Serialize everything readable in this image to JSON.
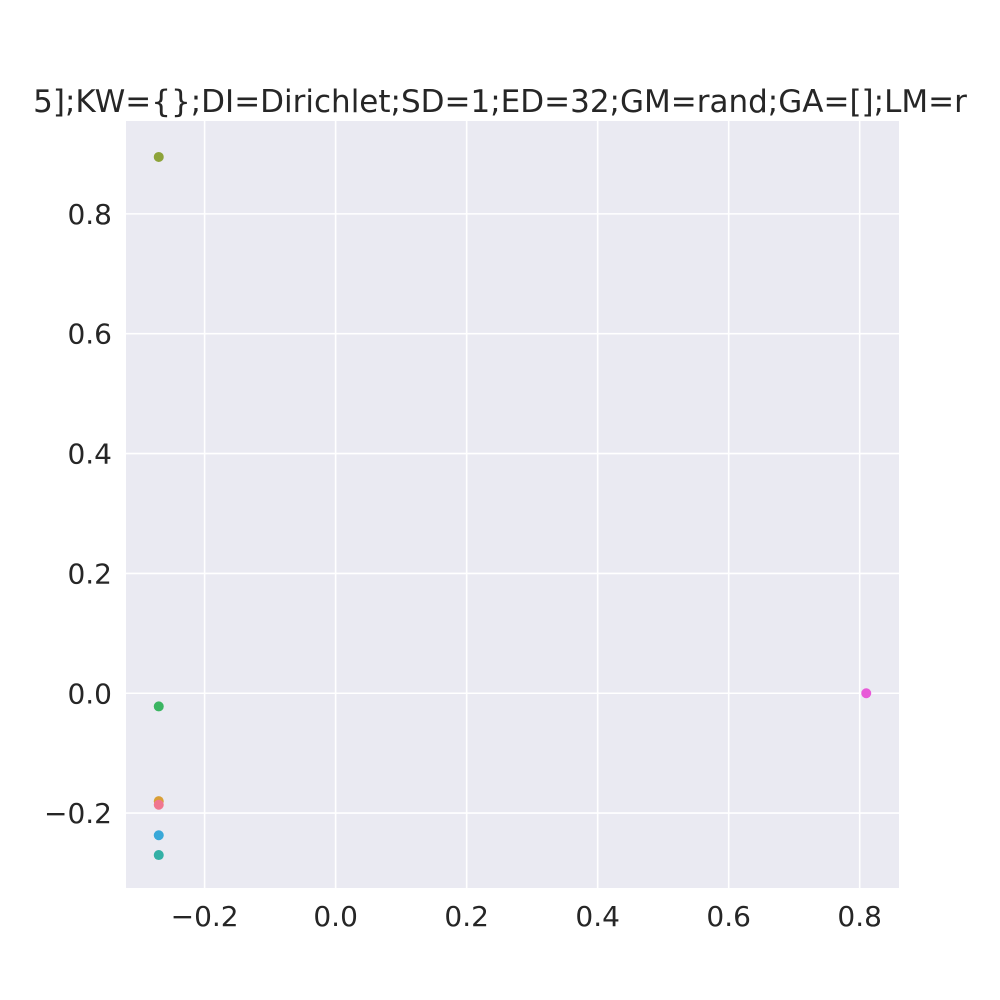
{
  "chart_data": {
    "type": "scatter",
    "title": "5];KW={};DI=Dirichlet;SD=1;ED=32;GM=rand;GA=[];LM=r",
    "xlabel": "",
    "ylabel": "",
    "xlim": [
      -0.32,
      0.86
    ],
    "ylim": [
      -0.325,
      0.955
    ],
    "x_ticks": [
      -0.2,
      0.0,
      0.2,
      0.4,
      0.6,
      0.8
    ],
    "x_tick_labels": [
      "−0.2",
      "0.0",
      "0.2",
      "0.4",
      "0.6",
      "0.8"
    ],
    "y_ticks": [
      -0.2,
      0.0,
      0.2,
      0.4,
      0.6,
      0.8
    ],
    "y_tick_labels": [
      "−0.2",
      "0.0",
      "0.2",
      "0.4",
      "0.6",
      "0.8"
    ],
    "grid": true,
    "legend": "none",
    "colors": {
      "background": "#eaeaf2",
      "grid": "#ffffff",
      "text": "#262626"
    },
    "series": [
      {
        "color": "#8da33a",
        "points": [
          [
            -0.27,
            0.895
          ]
        ]
      },
      {
        "color": "#3bb562",
        "points": [
          [
            -0.27,
            -0.022
          ]
        ]
      },
      {
        "color": "#d99f36",
        "points": [
          [
            -0.27,
            -0.18
          ]
        ]
      },
      {
        "color": "#f0768f",
        "points": [
          [
            -0.27,
            -0.186
          ]
        ]
      },
      {
        "color": "#39a8d8",
        "points": [
          [
            -0.27,
            -0.237
          ]
        ]
      },
      {
        "color": "#33b0a6",
        "points": [
          [
            -0.27,
            -0.27
          ]
        ]
      },
      {
        "color": "#e85ad8",
        "points": [
          [
            0.81,
            0.0
          ]
        ]
      }
    ]
  }
}
